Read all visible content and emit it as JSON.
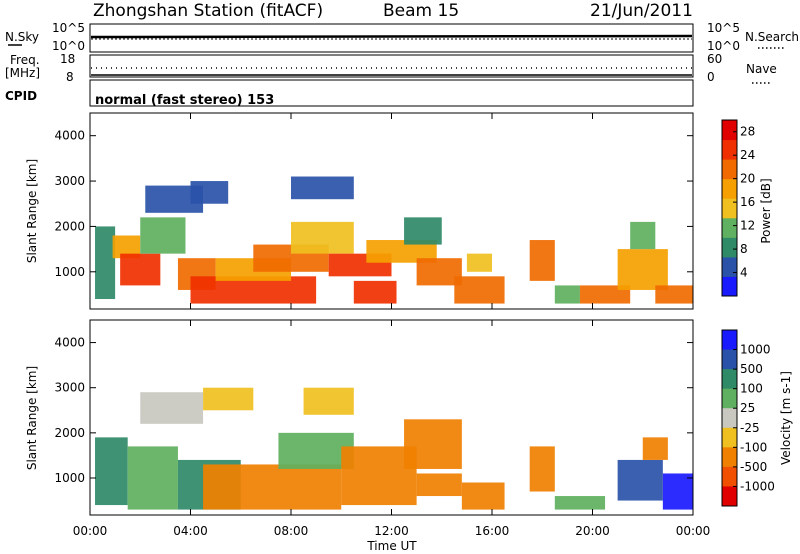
{
  "header": {
    "station_title": "Zhongshan Station (fitACF)",
    "beam": "Beam 15",
    "date": "21/Jun/2011"
  },
  "side_labels": {
    "nsky": "N.Sky",
    "nsky_top": "10^5",
    "nsky_bottom": "10^0",
    "freq": "Freq.",
    "freq_unit": "[MHz]",
    "freq_top": "18",
    "freq_bottom": "8",
    "cpid": "CPID",
    "nsearch": "N.Search",
    "nsearch_top": "10^5",
    "nsearch_bottom": "10^0",
    "nave": "Nave",
    "nave_top": "60",
    "nave_bottom": "0"
  },
  "cpid_text": "normal (fast stereo) 153",
  "colors": {
    "power_scale": [
      "#1a1aff",
      "#2a52a8",
      "#2f8a68",
      "#5fb060",
      "#f0c020",
      "#f5a000",
      "#f06a00",
      "#f03000",
      "#e00000"
    ],
    "velocity_scale": [
      "#1a1aff",
      "#2a52a8",
      "#2f8a68",
      "#5fb060",
      "#c8c8c0",
      "#f0c020",
      "#f08000",
      "#f05000",
      "#e00000"
    ]
  },
  "chart_data": [
    {
      "type": "heatmap",
      "name": "power",
      "xlabel": "",
      "ylabel": "Slant Range [km]",
      "x_range": [
        "00:00",
        "24:00"
      ],
      "ylim": [
        180,
        4500
      ],
      "y_ticks": [
        1000,
        2000,
        3000,
        4000
      ],
      "colorbar_label": "Power [dB]",
      "colorbar_ticks": [
        4,
        8,
        12,
        16,
        20,
        24,
        28
      ],
      "colorbar_range": [
        0,
        30
      ],
      "regions": [
        {
          "t0": 0.2,
          "t1": 1.0,
          "r0": 400,
          "r1": 2000,
          "v": 9
        },
        {
          "t0": 0.9,
          "t1": 2.0,
          "r0": 1300,
          "r1": 1800,
          "v": 19
        },
        {
          "t0": 1.2,
          "t1": 2.8,
          "r0": 700,
          "r1": 1400,
          "v": 25
        },
        {
          "t0": 2.0,
          "t1": 3.8,
          "r0": 1400,
          "r1": 2200,
          "v": 12
        },
        {
          "t0": 2.2,
          "t1": 4.5,
          "r0": 2300,
          "r1": 2900,
          "v": 6
        },
        {
          "t0": 4.0,
          "t1": 5.5,
          "r0": 2500,
          "r1": 3000,
          "v": 5
        },
        {
          "t0": 3.5,
          "t1": 5.0,
          "r0": 600,
          "r1": 1300,
          "v": 21
        },
        {
          "t0": 4.0,
          "t1": 9.0,
          "r0": 300,
          "r1": 900,
          "v": 26
        },
        {
          "t0": 5.0,
          "t1": 8.0,
          "r0": 800,
          "r1": 1300,
          "v": 18
        },
        {
          "t0": 6.5,
          "t1": 9.5,
          "r0": 1000,
          "r1": 1600,
          "v": 20
        },
        {
          "t0": 8.0,
          "t1": 10.5,
          "r0": 1400,
          "r1": 2100,
          "v": 14
        },
        {
          "t0": 8.0,
          "t1": 10.5,
          "r0": 2600,
          "r1": 3100,
          "v": 6
        },
        {
          "t0": 9.5,
          "t1": 12.0,
          "r0": 900,
          "r1": 1400,
          "v": 24
        },
        {
          "t0": 10.5,
          "t1": 12.2,
          "r0": 300,
          "r1": 800,
          "v": 25
        },
        {
          "t0": 11.0,
          "t1": 13.8,
          "r0": 1200,
          "r1": 1700,
          "v": 17
        },
        {
          "t0": 12.5,
          "t1": 14.0,
          "r0": 1600,
          "r1": 2200,
          "v": 9
        },
        {
          "t0": 13.0,
          "t1": 14.8,
          "r0": 700,
          "r1": 1300,
          "v": 21
        },
        {
          "t0": 14.5,
          "t1": 16.5,
          "r0": 300,
          "r1": 900,
          "v": 23
        },
        {
          "t0": 15.0,
          "t1": 16.0,
          "r0": 1000,
          "r1": 1400,
          "v": 16
        },
        {
          "t0": 17.5,
          "t1": 18.5,
          "r0": 800,
          "r1": 1700,
          "v": 22
        },
        {
          "t0": 18.5,
          "t1": 19.5,
          "r0": 300,
          "r1": 700,
          "v": 12
        },
        {
          "t0": 19.5,
          "t1": 21.5,
          "r0": 300,
          "r1": 700,
          "v": 23
        },
        {
          "t0": 21.0,
          "t1": 23.0,
          "r0": 600,
          "r1": 1500,
          "v": 17
        },
        {
          "t0": 21.5,
          "t1": 22.5,
          "r0": 1500,
          "r1": 2100,
          "v": 10
        },
        {
          "t0": 22.5,
          "t1": 24.0,
          "r0": 300,
          "r1": 700,
          "v": 22
        }
      ]
    },
    {
      "type": "heatmap",
      "name": "velocity",
      "xlabel": "Time UT",
      "ylabel": "Slant Range [km]",
      "x_range": [
        "00:00",
        "24:00"
      ],
      "x_ticks": [
        "00:00",
        "04:00",
        "08:00",
        "12:00",
        "16:00",
        "20:00",
        "00:00"
      ],
      "ylim": [
        180,
        4500
      ],
      "y_ticks": [
        1000,
        2000,
        3000,
        4000
      ],
      "colorbar_label": "Velocity [m s-1]",
      "colorbar_ticks": [
        "1000",
        "500",
        "100",
        "25",
        "-25",
        "-100",
        "-500",
        "-1000"
      ],
      "regions": [
        {
          "t0": 0.2,
          "t1": 1.5,
          "r0": 400,
          "r1": 1900,
          "v": 2
        },
        {
          "t0": 1.5,
          "t1": 3.5,
          "r0": 300,
          "r1": 1700,
          "v": 3
        },
        {
          "t0": 2.0,
          "t1": 4.5,
          "r0": 2200,
          "r1": 2900,
          "v": 4
        },
        {
          "t0": 4.5,
          "t1": 6.5,
          "r0": 2500,
          "r1": 3000,
          "v": 5
        },
        {
          "t0": 3.5,
          "t1": 6.0,
          "r0": 300,
          "r1": 1400,
          "v": 2
        },
        {
          "t0": 4.5,
          "t1": 10.0,
          "r0": 300,
          "r1": 1300,
          "v": 6
        },
        {
          "t0": 7.5,
          "t1": 10.5,
          "r0": 1200,
          "r1": 2000,
          "v": 3
        },
        {
          "t0": 8.5,
          "t1": 10.5,
          "r0": 2400,
          "r1": 3000,
          "v": 5
        },
        {
          "t0": 10.0,
          "t1": 13.0,
          "r0": 400,
          "r1": 1700,
          "v": 6
        },
        {
          "t0": 12.5,
          "t1": 14.8,
          "r0": 1200,
          "r1": 2300,
          "v": 6
        },
        {
          "t0": 13.0,
          "t1": 14.8,
          "r0": 600,
          "r1": 1100,
          "v": 6
        },
        {
          "t0": 14.8,
          "t1": 16.5,
          "r0": 300,
          "r1": 900,
          "v": 6
        },
        {
          "t0": 17.5,
          "t1": 18.5,
          "r0": 700,
          "r1": 1700,
          "v": 6
        },
        {
          "t0": 18.5,
          "t1": 20.5,
          "r0": 300,
          "r1": 600,
          "v": 3
        },
        {
          "t0": 21.0,
          "t1": 22.8,
          "r0": 500,
          "r1": 1400,
          "v": 1
        },
        {
          "t0": 22.0,
          "t1": 23.0,
          "r0": 1400,
          "r1": 1900,
          "v": 6
        },
        {
          "t0": 22.8,
          "t1": 24.0,
          "r0": 300,
          "r1": 1100,
          "v": 0
        }
      ]
    }
  ]
}
